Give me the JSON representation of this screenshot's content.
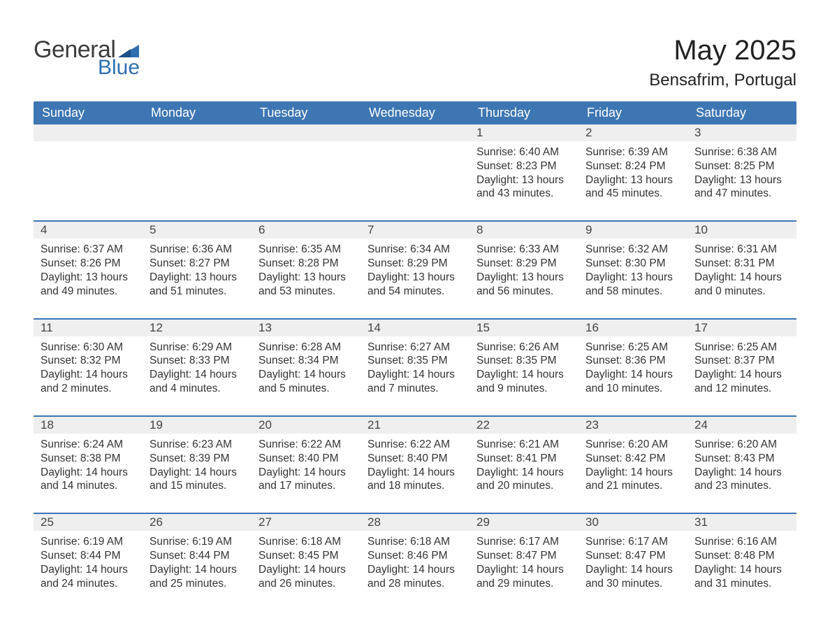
{
  "colors": {
    "header_bg": "#3d76b3",
    "header_text": "#ffffff",
    "daynum_bg": "#efefef",
    "row_separator": "#3d76b3",
    "body_text": "#333333",
    "logo_gray": "#3b3b3b",
    "logo_blue": "#2f6fb0",
    "page_bg": "#ffffff"
  },
  "logo": {
    "word1": "General",
    "word2": "Blue"
  },
  "title": {
    "month": "May 2025",
    "location": "Bensafrim, Portugal"
  },
  "weekdays": [
    "Sunday",
    "Monday",
    "Tuesday",
    "Wednesday",
    "Thursday",
    "Friday",
    "Saturday"
  ],
  "weeks": [
    [
      null,
      null,
      null,
      null,
      {
        "n": "1",
        "sunrise": "6:40 AM",
        "sunset": "8:23 PM",
        "daylight": "13 hours and 43 minutes."
      },
      {
        "n": "2",
        "sunrise": "6:39 AM",
        "sunset": "8:24 PM",
        "daylight": "13 hours and 45 minutes."
      },
      {
        "n": "3",
        "sunrise": "6:38 AM",
        "sunset": "8:25 PM",
        "daylight": "13 hours and 47 minutes."
      }
    ],
    [
      {
        "n": "4",
        "sunrise": "6:37 AM",
        "sunset": "8:26 PM",
        "daylight": "13 hours and 49 minutes."
      },
      {
        "n": "5",
        "sunrise": "6:36 AM",
        "sunset": "8:27 PM",
        "daylight": "13 hours and 51 minutes."
      },
      {
        "n": "6",
        "sunrise": "6:35 AM",
        "sunset": "8:28 PM",
        "daylight": "13 hours and 53 minutes."
      },
      {
        "n": "7",
        "sunrise": "6:34 AM",
        "sunset": "8:29 PM",
        "daylight": "13 hours and 54 minutes."
      },
      {
        "n": "8",
        "sunrise": "6:33 AM",
        "sunset": "8:29 PM",
        "daylight": "13 hours and 56 minutes."
      },
      {
        "n": "9",
        "sunrise": "6:32 AM",
        "sunset": "8:30 PM",
        "daylight": "13 hours and 58 minutes."
      },
      {
        "n": "10",
        "sunrise": "6:31 AM",
        "sunset": "8:31 PM",
        "daylight": "14 hours and 0 minutes."
      }
    ],
    [
      {
        "n": "11",
        "sunrise": "6:30 AM",
        "sunset": "8:32 PM",
        "daylight": "14 hours and 2 minutes."
      },
      {
        "n": "12",
        "sunrise": "6:29 AM",
        "sunset": "8:33 PM",
        "daylight": "14 hours and 4 minutes."
      },
      {
        "n": "13",
        "sunrise": "6:28 AM",
        "sunset": "8:34 PM",
        "daylight": "14 hours and 5 minutes."
      },
      {
        "n": "14",
        "sunrise": "6:27 AM",
        "sunset": "8:35 PM",
        "daylight": "14 hours and 7 minutes."
      },
      {
        "n": "15",
        "sunrise": "6:26 AM",
        "sunset": "8:35 PM",
        "daylight": "14 hours and 9 minutes."
      },
      {
        "n": "16",
        "sunrise": "6:25 AM",
        "sunset": "8:36 PM",
        "daylight": "14 hours and 10 minutes."
      },
      {
        "n": "17",
        "sunrise": "6:25 AM",
        "sunset": "8:37 PM",
        "daylight": "14 hours and 12 minutes."
      }
    ],
    [
      {
        "n": "18",
        "sunrise": "6:24 AM",
        "sunset": "8:38 PM",
        "daylight": "14 hours and 14 minutes."
      },
      {
        "n": "19",
        "sunrise": "6:23 AM",
        "sunset": "8:39 PM",
        "daylight": "14 hours and 15 minutes."
      },
      {
        "n": "20",
        "sunrise": "6:22 AM",
        "sunset": "8:40 PM",
        "daylight": "14 hours and 17 minutes."
      },
      {
        "n": "21",
        "sunrise": "6:22 AM",
        "sunset": "8:40 PM",
        "daylight": "14 hours and 18 minutes."
      },
      {
        "n": "22",
        "sunrise": "6:21 AM",
        "sunset": "8:41 PM",
        "daylight": "14 hours and 20 minutes."
      },
      {
        "n": "23",
        "sunrise": "6:20 AM",
        "sunset": "8:42 PM",
        "daylight": "14 hours and 21 minutes."
      },
      {
        "n": "24",
        "sunrise": "6:20 AM",
        "sunset": "8:43 PM",
        "daylight": "14 hours and 23 minutes."
      }
    ],
    [
      {
        "n": "25",
        "sunrise": "6:19 AM",
        "sunset": "8:44 PM",
        "daylight": "14 hours and 24 minutes."
      },
      {
        "n": "26",
        "sunrise": "6:19 AM",
        "sunset": "8:44 PM",
        "daylight": "14 hours and 25 minutes."
      },
      {
        "n": "27",
        "sunrise": "6:18 AM",
        "sunset": "8:45 PM",
        "daylight": "14 hours and 26 minutes."
      },
      {
        "n": "28",
        "sunrise": "6:18 AM",
        "sunset": "8:46 PM",
        "daylight": "14 hours and 28 minutes."
      },
      {
        "n": "29",
        "sunrise": "6:17 AM",
        "sunset": "8:47 PM",
        "daylight": "14 hours and 29 minutes."
      },
      {
        "n": "30",
        "sunrise": "6:17 AM",
        "sunset": "8:47 PM",
        "daylight": "14 hours and 30 minutes."
      },
      {
        "n": "31",
        "sunrise": "6:16 AM",
        "sunset": "8:48 PM",
        "daylight": "14 hours and 31 minutes."
      }
    ]
  ],
  "labels": {
    "sunrise": "Sunrise:",
    "sunset": "Sunset:",
    "daylight": "Daylight:"
  }
}
